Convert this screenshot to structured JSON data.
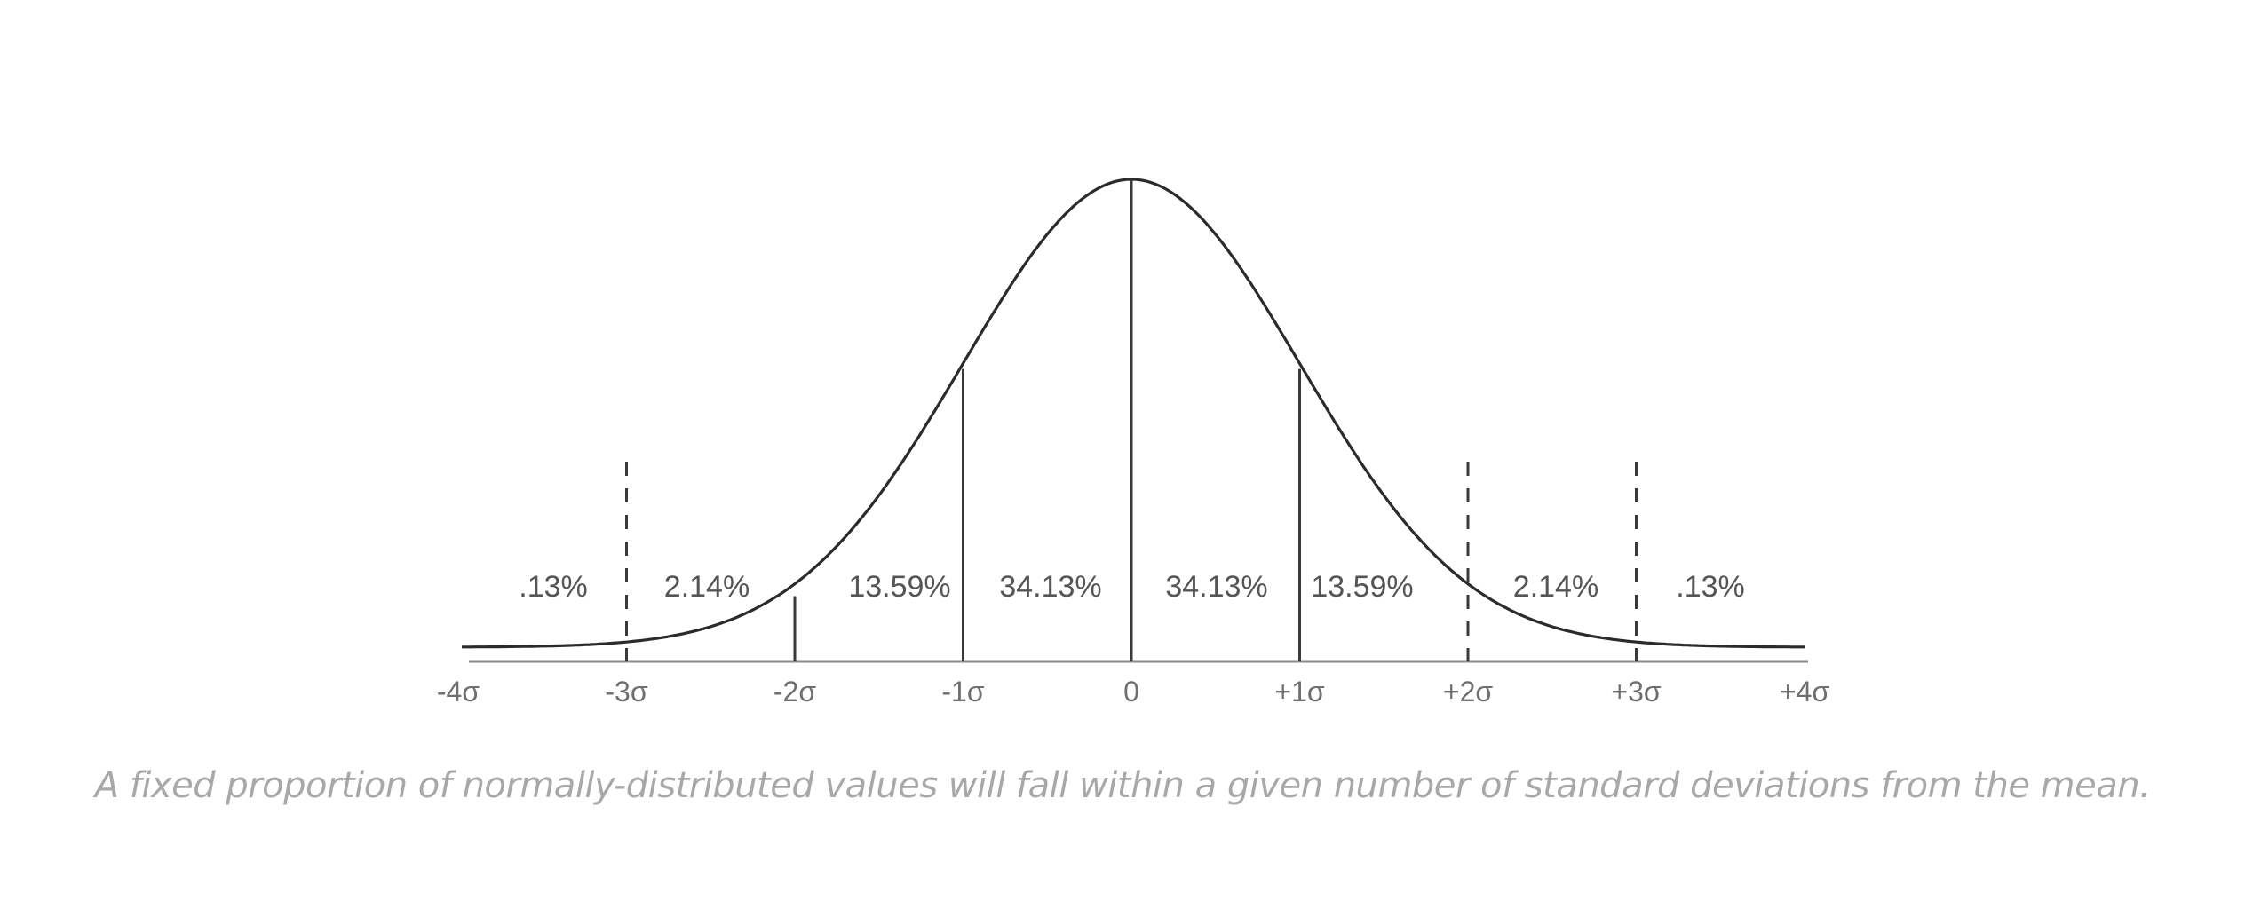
{
  "chart_data": {
    "type": "area",
    "title": "",
    "xlabel": "",
    "ylabel": "",
    "distribution": "standard normal",
    "xlim": [
      -4,
      4
    ],
    "x_ticks": [
      -4,
      -3,
      -2,
      -1,
      0,
      1,
      2,
      3,
      4
    ],
    "x_tick_labels": [
      "-4σ",
      "-3σ",
      "-2σ",
      "-1σ",
      "0",
      "+1σ",
      "+2σ",
      "+3σ",
      "+4σ"
    ],
    "boundaries": [
      {
        "x": -3,
        "style": "dashed"
      },
      {
        "x": -2,
        "style": "solid"
      },
      {
        "x": -1,
        "style": "solid"
      },
      {
        "x": 0,
        "style": "solid"
      },
      {
        "x": 1,
        "style": "solid"
      },
      {
        "x": 2,
        "style": "dashed"
      },
      {
        "x": 3,
        "style": "dashed"
      }
    ],
    "regions": [
      {
        "from": -4,
        "to": -3,
        "label": ".13%",
        "value": 0.13
      },
      {
        "from": -3,
        "to": -2,
        "label": "2.14%",
        "value": 2.14
      },
      {
        "from": -2,
        "to": -1,
        "label": "13.59%",
        "value": 13.59
      },
      {
        "from": -1,
        "to": 0,
        "label": "34.13%",
        "value": 34.13
      },
      {
        "from": 0,
        "to": 1,
        "label": "34.13%",
        "value": 34.13
      },
      {
        "from": 1,
        "to": 2,
        "label": "13.59%",
        "value": 13.59
      },
      {
        "from": 2,
        "to": 3,
        "label": "2.14%",
        "value": 2.14
      },
      {
        "from": 3,
        "to": 4,
        "label": ".13%",
        "value": 0.13
      }
    ],
    "colors": {
      "curve": "#2b2b2b",
      "axis": "#8a8a8a",
      "boundary": "#3a3a3a",
      "tick_label": "#6f6f6f",
      "region_label": "#555555"
    }
  },
  "caption": "A fixed proportion of normally-distributed values will fall within a given number of standard deviations from the mean."
}
